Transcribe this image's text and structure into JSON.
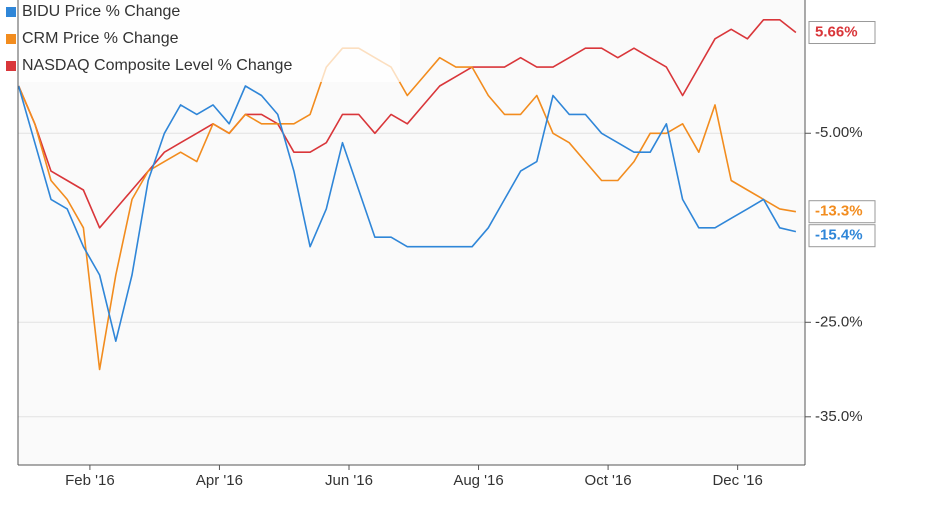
{
  "chart_data": {
    "type": "line",
    "x": [
      0.9,
      1.15,
      1.4,
      1.65,
      1.9,
      2.15,
      2.4,
      2.65,
      2.9,
      3.15,
      3.4,
      3.65,
      3.9,
      4.15,
      4.4,
      4.65,
      4.9,
      5.15,
      5.4,
      5.65,
      5.9,
      6.15,
      6.4,
      6.65,
      6.9,
      7.15,
      7.4,
      7.65,
      7.9,
      8.15,
      8.4,
      8.65,
      8.9,
      9.15,
      9.4,
      9.65,
      9.9,
      10.15,
      10.4,
      10.65,
      10.9,
      11.15,
      11.4,
      11.65,
      11.9,
      12.15,
      12.4,
      12.65,
      12.9
    ],
    "series": [
      {
        "name": "BIDU Price % Change",
        "color": "#2f86d8",
        "end_label": "-15.4%",
        "values": [
          0,
          -6,
          -12,
          -13,
          -17,
          -20,
          -27,
          -20,
          -10,
          -5,
          -2,
          -3,
          -2,
          -4,
          0,
          -1,
          -3,
          -9,
          -17,
          -13,
          -6,
          -11,
          -16,
          -16,
          -17,
          -17,
          -17,
          -17,
          -17,
          -15,
          -12,
          -9,
          -8,
          -1,
          -3,
          -3,
          -5,
          -6,
          -7,
          -7,
          -4,
          -12,
          -15,
          -15,
          -14,
          -13,
          -12,
          -15,
          -15.4
        ]
      },
      {
        "name": "CRM Price % Change",
        "color": "#f28c1e",
        "end_label": "-13.3%",
        "values": [
          0,
          -4,
          -10,
          -12,
          -15,
          -30,
          -20,
          -12,
          -9,
          -8,
          -7,
          -8,
          -4,
          -5,
          -3,
          -4,
          -4,
          -4,
          -3,
          2,
          4,
          4,
          3,
          2,
          -1,
          1,
          3,
          2,
          2,
          -1,
          -3,
          -3,
          -1,
          -5,
          -6,
          -8,
          -10,
          -10,
          -8,
          -5,
          -5,
          -4,
          -7,
          -2,
          -10,
          -11,
          -12,
          -13,
          -13.3
        ]
      },
      {
        "name": "NASDAQ Composite Level % Change",
        "color": "#d9363a",
        "end_label": "5.66%",
        "values": [
          0,
          -4,
          -9,
          -10,
          -11,
          -15,
          -13,
          -11,
          -9,
          -7,
          -6,
          -5,
          -4,
          -5,
          -3,
          -3,
          -4,
          -7,
          -7,
          -6,
          -3,
          -3,
          -5,
          -3,
          -4,
          -2,
          0,
          1,
          2,
          2,
          2,
          3,
          2,
          2,
          3,
          4,
          4,
          3,
          4,
          3,
          2,
          -1,
          2,
          5,
          6,
          5,
          7,
          7,
          5.66
        ]
      }
    ],
    "xlim": [
      0.89,
      13.04
    ],
    "xticks": [
      {
        "value": 2,
        "label": "Feb '16"
      },
      {
        "value": 4,
        "label": "Apr '16"
      },
      {
        "value": 6,
        "label": "Jun '16"
      },
      {
        "value": 8,
        "label": "Aug '16"
      },
      {
        "value": 10,
        "label": "Oct '16"
      },
      {
        "value": 12,
        "label": "Dec '16"
      }
    ],
    "ylim": [
      -40.1,
      9.1
    ],
    "yticks": [
      {
        "value": -5,
        "label": "-5.00%"
      },
      {
        "value": -25,
        "label": "-25.0%"
      },
      {
        "value": -35,
        "label": "-35.0%"
      }
    ],
    "grid": true,
    "legend": "top-left"
  }
}
